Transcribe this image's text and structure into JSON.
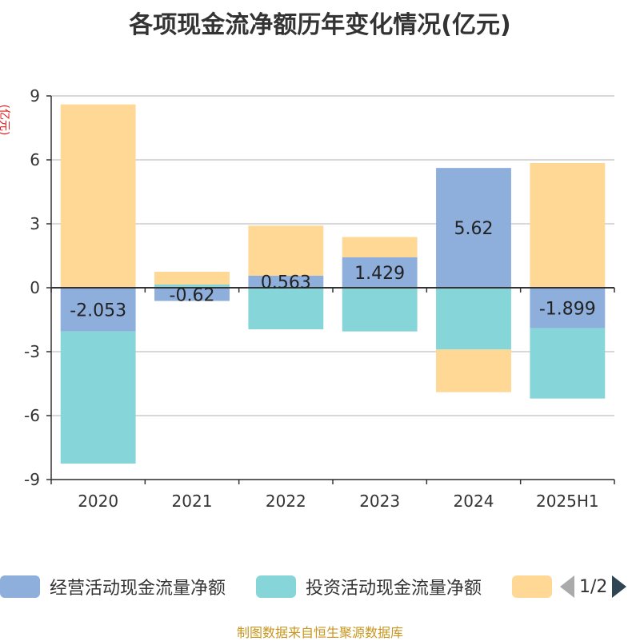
{
  "title": "各项现金流净额历年变化情况(亿元)",
  "unit": "(亿元)",
  "source": "制图数据来自恒生聚源数据库",
  "legend": {
    "page": "1/2",
    "items": [
      {
        "label": "经营活动现金流量净额",
        "color": "#8eaedc"
      },
      {
        "label": "投资活动现金流量净额",
        "color": "#86d5d8"
      },
      {
        "label": "",
        "color": "#fed894"
      }
    ]
  },
  "chart_data": {
    "type": "bar",
    "stacked": true,
    "categories": [
      "2020",
      "2021",
      "2022",
      "2023",
      "2024",
      "2025H1"
    ],
    "ylim": [
      -9,
      9
    ],
    "yticks": [
      9,
      6,
      3,
      0,
      -3,
      -6,
      -9
    ],
    "series": [
      {
        "name": "经营活动现金流量净额",
        "color": "#8eaedc",
        "values": [
          -2.053,
          -0.62,
          0.563,
          1.429,
          5.62,
          -1.899
        ],
        "labels": [
          "-2.053",
          "-0.62",
          "0.563",
          "1.429",
          "5.62",
          "-1.899"
        ]
      },
      {
        "name": "投资活动现金流量净额",
        "color": "#86d5d8",
        "values": [
          -6.2,
          0.15,
          -1.95,
          -2.05,
          -2.9,
          -3.3
        ]
      },
      {
        "color": "#fed894",
        "values": [
          8.6,
          0.6,
          2.35,
          0.95,
          -2.0,
          5.85
        ]
      }
    ]
  }
}
